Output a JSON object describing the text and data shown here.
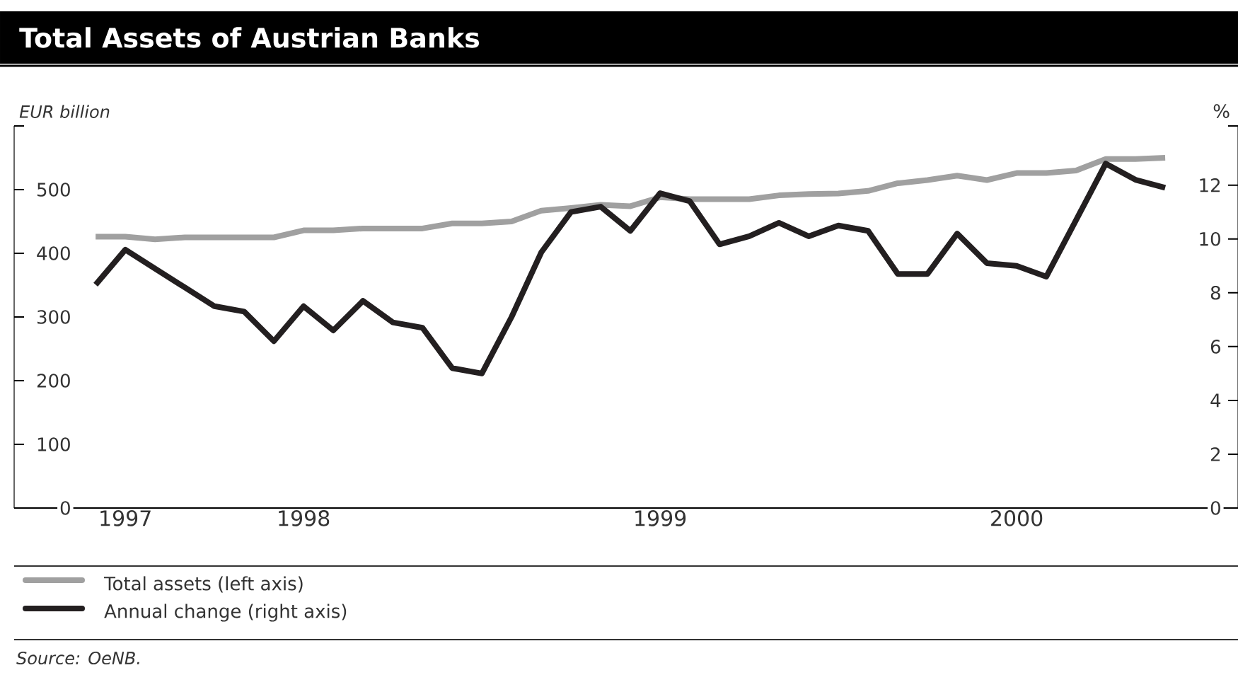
{
  "chart_data": {
    "type": "line",
    "title": "Total Assets of Austrian Banks",
    "ylabel": "EUR billion",
    "y2label": "%",
    "x": [
      "1997-07",
      "1997-08",
      "1997-09",
      "1997-10",
      "1997-11",
      "1997-12",
      "1998-01",
      "1998-02",
      "1998-03",
      "1998-04",
      "1998-05",
      "1998-06",
      "1998-07",
      "1998-08",
      "1998-09",
      "1998-10",
      "1998-11",
      "1998-12",
      "1999-01",
      "1999-02",
      "1999-03",
      "1999-04",
      "1999-05",
      "1999-06",
      "1999-07",
      "1999-08",
      "1999-09",
      "1999-10",
      "1999-11",
      "1999-12",
      "2000-01",
      "2000-02",
      "2000-03",
      "2000-04",
      "2000-05",
      "2000-06",
      "2000-07"
    ],
    "series": [
      {
        "name": "Total assets (left axis)",
        "color": "#a0a0a0",
        "values": [
          426,
          426,
          422,
          425,
          425,
          425,
          425,
          436,
          436,
          439,
          439,
          439,
          447,
          447,
          450,
          467,
          471,
          476,
          474,
          488,
          485,
          485,
          485,
          491,
          493,
          494,
          498,
          510,
          515,
          522,
          515,
          526,
          526,
          530,
          548,
          548,
          550
        ]
      },
      {
        "name": "Annual change (right axis)",
        "color": "#231f20",
        "axis": "y2",
        "values": [
          8.3,
          9.6,
          8.9,
          8.2,
          7.5,
          7.3,
          6.2,
          7.5,
          6.6,
          7.7,
          6.9,
          6.7,
          5.2,
          5.0,
          7.1,
          9.5,
          11.0,
          11.2,
          10.3,
          11.7,
          11.4,
          9.8,
          10.1,
          10.6,
          10.1,
          10.5,
          10.3,
          8.7,
          8.7,
          10.2,
          9.1,
          9.0,
          8.6,
          10.7,
          12.8,
          12.2,
          11.9
        ]
      }
    ],
    "xlim": [
      "1997-04-09",
      "2000-09-15"
    ],
    "xticks": [
      {
        "value": "1997-08",
        "label": "1997"
      },
      {
        "value": "1998-02",
        "label": "1998"
      },
      {
        "value": "1999-02",
        "label": "1999"
      },
      {
        "value": "2000-02",
        "label": "2000"
      }
    ],
    "ylim": [
      0,
      600
    ],
    "yticks": [
      0,
      100,
      200,
      300,
      400,
      500,
      {
        "value": 600,
        "label": null
      }
    ],
    "y2lim": [
      0,
      14.2
    ],
    "y2ticks": [
      0,
      2,
      4,
      6,
      8,
      10,
      12,
      {
        "value": 14.2,
        "label": null
      }
    ],
    "grid": false,
    "legend": "bottom",
    "marker": "none",
    "line_style": "solid",
    "annotations": [
      "Source: OeNB."
    ]
  }
}
